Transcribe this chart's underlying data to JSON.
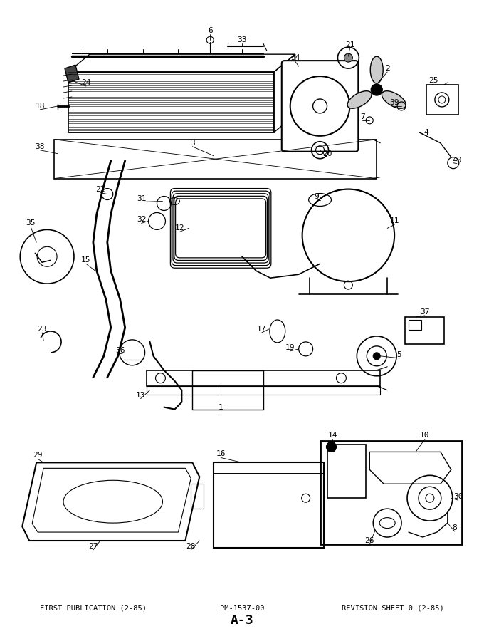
{
  "title": "A-3",
  "footer_left": "FIRST PUBLICATION (2-85)",
  "footer_center": "PM-1537-00",
  "footer_right": "REVISION SHEET 0 (2-85)",
  "bg_color": "#ffffff",
  "fig_width": 6.8,
  "fig_height": 8.9,
  "dpi": 100
}
